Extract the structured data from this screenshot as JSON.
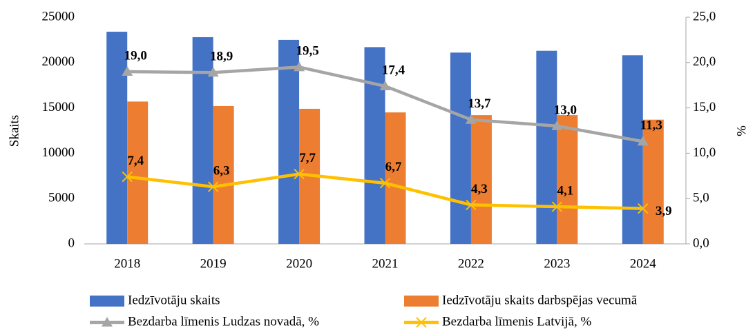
{
  "chart_data": {
    "type": "bar_line",
    "categories": [
      "2018",
      "2019",
      "2020",
      "2021",
      "2022",
      "2023",
      "2024"
    ],
    "series": [
      {
        "name": "Iedzīvotāju skaits",
        "color": "#4472c4",
        "type": "bar",
        "values": [
          23400,
          22800,
          22500,
          21700,
          21100,
          21300,
          20800
        ]
      },
      {
        "name": "Iedzīvotāju skaits darbspējas vecumā",
        "color": "#ed7d31",
        "type": "bar",
        "values": [
          15700,
          15200,
          14900,
          14500,
          14200,
          14200,
          13700
        ]
      },
      {
        "name": "Bezdarba līmenis Ludzas novadā, %",
        "color": "#a5a5a5",
        "type": "line",
        "marker": "triangle",
        "axis": "y2",
        "values": [
          19.0,
          18.9,
          19.5,
          17.4,
          13.7,
          13.0,
          11.3
        ],
        "value_labels": [
          "19,0",
          "18,9",
          "19,5",
          "17,4",
          "13,7",
          "13,0",
          "11,3"
        ]
      },
      {
        "name": "Bezdarba līmenis Latvijā, %",
        "color": "#ffc000",
        "type": "line",
        "marker": "x",
        "axis": "y2",
        "values": [
          7.4,
          6.3,
          7.7,
          6.7,
          4.3,
          4.1,
          3.9
        ],
        "value_labels": [
          "7,4",
          "6,3",
          "7,7",
          "6,7",
          "4,3",
          "4,1",
          "3,9"
        ]
      }
    ],
    "ylabel": "Skaits",
    "y2label": "%",
    "ylim": [
      0,
      25000
    ],
    "yticks": [
      0,
      5000,
      10000,
      15000,
      20000,
      25000
    ],
    "y2lim": [
      0,
      25
    ],
    "y2ticks": [
      {
        "value": 0,
        "label": "0,0"
      },
      {
        "value": 5,
        "label": "5,0"
      },
      {
        "value": 10,
        "label": "10,0"
      },
      {
        "value": 15,
        "label": "15,0"
      },
      {
        "value": 20,
        "label": "20,0"
      },
      {
        "value": 25,
        "label": "25,0"
      }
    ],
    "legend": "bottom"
  }
}
